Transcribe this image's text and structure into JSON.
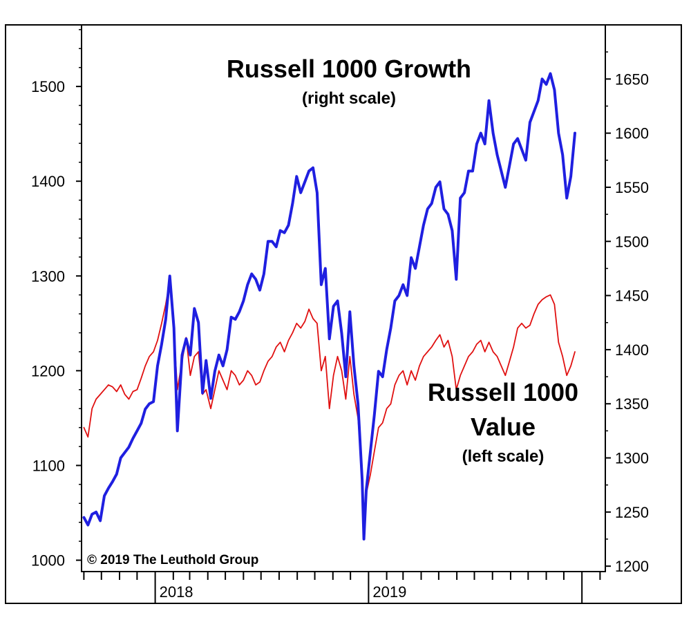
{
  "chart_data": {
    "type": "line",
    "title": "",
    "x_ticks": [
      "2018",
      "2019"
    ],
    "left_axis": {
      "ticks": [
        1000,
        1100,
        1200,
        1300,
        1400,
        1500
      ],
      "ylim": [
        988,
        1565
      ]
    },
    "right_axis": {
      "ticks": [
        1200,
        1250,
        1300,
        1350,
        1400,
        1450,
        1500,
        1550,
        1600,
        1650
      ],
      "ylim": [
        1195,
        1700
      ]
    },
    "grid": false,
    "annotations": {
      "growth_title": "Russell 1000 Growth",
      "growth_sub": "(right scale)",
      "value_title_1": "Russell 1000",
      "value_title_2": "Value",
      "value_sub": "(left scale)",
      "copyright": "© 2019 The Leuthold  Group"
    },
    "series": [
      {
        "name": "Russell 1000 Growth",
        "axis": "right",
        "color": "#1f1fe0",
        "points": [
          [
            "2017-09-01",
            1245
          ],
          [
            "2017-09-08",
            1238
          ],
          [
            "2017-09-15",
            1248
          ],
          [
            "2017-09-22",
            1250
          ],
          [
            "2017-09-29",
            1242
          ],
          [
            "2017-10-06",
            1265
          ],
          [
            "2017-10-13",
            1272
          ],
          [
            "2017-10-20",
            1278
          ],
          [
            "2017-10-27",
            1285
          ],
          [
            "2017-11-03",
            1300
          ],
          [
            "2017-11-10",
            1305
          ],
          [
            "2017-11-17",
            1310
          ],
          [
            "2017-11-24",
            1318
          ],
          [
            "2017-12-01",
            1325
          ],
          [
            "2017-12-08",
            1332
          ],
          [
            "2017-12-15",
            1345
          ],
          [
            "2017-12-22",
            1350
          ],
          [
            "2017-12-29",
            1352
          ],
          [
            "2018-01-05",
            1385
          ],
          [
            "2018-01-12",
            1405
          ],
          [
            "2018-01-19",
            1428
          ],
          [
            "2018-01-26",
            1468
          ],
          [
            "2018-02-02",
            1420
          ],
          [
            "2018-02-08",
            1325
          ],
          [
            "2018-02-16",
            1395
          ],
          [
            "2018-02-23",
            1410
          ],
          [
            "2018-03-02",
            1395
          ],
          [
            "2018-03-09",
            1438
          ],
          [
            "2018-03-16",
            1425
          ],
          [
            "2018-03-23",
            1360
          ],
          [
            "2018-03-29",
            1390
          ],
          [
            "2018-04-06",
            1355
          ],
          [
            "2018-04-13",
            1380
          ],
          [
            "2018-04-20",
            1395
          ],
          [
            "2018-04-27",
            1385
          ],
          [
            "2018-05-04",
            1400
          ],
          [
            "2018-05-11",
            1430
          ],
          [
            "2018-05-18",
            1428
          ],
          [
            "2018-05-25",
            1435
          ],
          [
            "2018-06-01",
            1445
          ],
          [
            "2018-06-08",
            1460
          ],
          [
            "2018-06-15",
            1470
          ],
          [
            "2018-06-22",
            1465
          ],
          [
            "2018-06-29",
            1455
          ],
          [
            "2018-07-06",
            1470
          ],
          [
            "2018-07-13",
            1500
          ],
          [
            "2018-07-20",
            1500
          ],
          [
            "2018-07-27",
            1495
          ],
          [
            "2018-08-03",
            1510
          ],
          [
            "2018-08-10",
            1508
          ],
          [
            "2018-08-17",
            1515
          ],
          [
            "2018-08-24",
            1535
          ],
          [
            "2018-08-31",
            1560
          ],
          [
            "2018-09-07",
            1545
          ],
          [
            "2018-09-14",
            1555
          ],
          [
            "2018-09-21",
            1565
          ],
          [
            "2018-09-28",
            1568
          ],
          [
            "2018-10-05",
            1545
          ],
          [
            "2018-10-12",
            1460
          ],
          [
            "2018-10-19",
            1475
          ],
          [
            "2018-10-26",
            1410
          ],
          [
            "2018-11-02",
            1440
          ],
          [
            "2018-11-09",
            1445
          ],
          [
            "2018-11-16",
            1415
          ],
          [
            "2018-11-23",
            1375
          ],
          [
            "2018-11-30",
            1435
          ],
          [
            "2018-12-07",
            1385
          ],
          [
            "2018-12-14",
            1350
          ],
          [
            "2018-12-21",
            1280
          ],
          [
            "2018-12-24",
            1225
          ],
          [
            "2018-12-28",
            1270
          ],
          [
            "2019-01-04",
            1305
          ],
          [
            "2019-01-11",
            1340
          ],
          [
            "2019-01-18",
            1380
          ],
          [
            "2019-01-25",
            1375
          ],
          [
            "2019-02-01",
            1400
          ],
          [
            "2019-02-08",
            1420
          ],
          [
            "2019-02-15",
            1445
          ],
          [
            "2019-02-22",
            1450
          ],
          [
            "2019-03-01",
            1460
          ],
          [
            "2019-03-08",
            1450
          ],
          [
            "2019-03-15",
            1485
          ],
          [
            "2019-03-22",
            1475
          ],
          [
            "2019-03-29",
            1495
          ],
          [
            "2019-04-05",
            1515
          ],
          [
            "2019-04-12",
            1530
          ],
          [
            "2019-04-19",
            1535
          ],
          [
            "2019-04-26",
            1550
          ],
          [
            "2019-05-03",
            1555
          ],
          [
            "2019-05-10",
            1530
          ],
          [
            "2019-05-17",
            1525
          ],
          [
            "2019-05-24",
            1510
          ],
          [
            "2019-05-31",
            1465
          ],
          [
            "2019-06-07",
            1540
          ],
          [
            "2019-06-14",
            1545
          ],
          [
            "2019-06-21",
            1565
          ],
          [
            "2019-06-28",
            1565
          ],
          [
            "2019-07-05",
            1590
          ],
          [
            "2019-07-12",
            1600
          ],
          [
            "2019-07-19",
            1590
          ],
          [
            "2019-07-26",
            1630
          ],
          [
            "2019-08-02",
            1600
          ],
          [
            "2019-08-09",
            1580
          ],
          [
            "2019-08-16",
            1565
          ],
          [
            "2019-08-23",
            1550
          ],
          [
            "2019-08-30",
            1570
          ],
          [
            "2019-09-06",
            1590
          ],
          [
            "2019-09-13",
            1595
          ],
          [
            "2019-09-20",
            1585
          ],
          [
            "2019-09-27",
            1575
          ],
          [
            "2019-10-04",
            1610
          ],
          [
            "2019-10-11",
            1620
          ],
          [
            "2019-10-18",
            1630
          ],
          [
            "2019-10-25",
            1650
          ],
          [
            "2019-11-01",
            1645
          ],
          [
            "2019-11-08",
            1655
          ],
          [
            "2019-11-15",
            1640
          ],
          [
            "2019-11-22",
            1600
          ],
          [
            "2019-11-29",
            1580
          ],
          [
            "2019-12-06",
            1540
          ],
          [
            "2019-12-13",
            1560
          ],
          [
            "2019-12-20",
            1600
          ]
        ]
      },
      {
        "name": "Russell 1000 Value",
        "axis": "left",
        "color": "#e01010",
        "points": [
          [
            "2017-09-01",
            1140
          ],
          [
            "2017-09-08",
            1130
          ],
          [
            "2017-09-15",
            1160
          ],
          [
            "2017-09-22",
            1170
          ],
          [
            "2017-09-29",
            1175
          ],
          [
            "2017-10-06",
            1180
          ],
          [
            "2017-10-13",
            1185
          ],
          [
            "2017-10-20",
            1183
          ],
          [
            "2017-10-27",
            1178
          ],
          [
            "2017-11-03",
            1185
          ],
          [
            "2017-11-10",
            1175
          ],
          [
            "2017-11-17",
            1170
          ],
          [
            "2017-11-24",
            1178
          ],
          [
            "2017-12-01",
            1180
          ],
          [
            "2017-12-08",
            1192
          ],
          [
            "2017-12-15",
            1205
          ],
          [
            "2017-12-22",
            1215
          ],
          [
            "2017-12-29",
            1220
          ],
          [
            "2018-01-05",
            1232
          ],
          [
            "2018-01-12",
            1250
          ],
          [
            "2018-01-19",
            1270
          ],
          [
            "2018-01-26",
            1295
          ],
          [
            "2018-02-02",
            1240
          ],
          [
            "2018-02-08",
            1180
          ],
          [
            "2018-02-16",
            1210
          ],
          [
            "2018-02-23",
            1235
          ],
          [
            "2018-03-02",
            1195
          ],
          [
            "2018-03-09",
            1215
          ],
          [
            "2018-03-16",
            1220
          ],
          [
            "2018-03-23",
            1175
          ],
          [
            "2018-03-29",
            1180
          ],
          [
            "2018-04-06",
            1160
          ],
          [
            "2018-04-13",
            1180
          ],
          [
            "2018-04-20",
            1200
          ],
          [
            "2018-04-27",
            1190
          ],
          [
            "2018-05-04",
            1180
          ],
          [
            "2018-05-11",
            1200
          ],
          [
            "2018-05-18",
            1195
          ],
          [
            "2018-05-25",
            1185
          ],
          [
            "2018-06-01",
            1190
          ],
          [
            "2018-06-08",
            1200
          ],
          [
            "2018-06-15",
            1195
          ],
          [
            "2018-06-22",
            1185
          ],
          [
            "2018-06-29",
            1188
          ],
          [
            "2018-07-06",
            1200
          ],
          [
            "2018-07-13",
            1210
          ],
          [
            "2018-07-20",
            1215
          ],
          [
            "2018-07-27",
            1225
          ],
          [
            "2018-08-03",
            1230
          ],
          [
            "2018-08-10",
            1220
          ],
          [
            "2018-08-17",
            1232
          ],
          [
            "2018-08-24",
            1240
          ],
          [
            "2018-08-31",
            1250
          ],
          [
            "2018-09-07",
            1245
          ],
          [
            "2018-09-14",
            1252
          ],
          [
            "2018-09-21",
            1265
          ],
          [
            "2018-09-28",
            1255
          ],
          [
            "2018-10-05",
            1250
          ],
          [
            "2018-10-12",
            1200
          ],
          [
            "2018-10-19",
            1215
          ],
          [
            "2018-10-26",
            1160
          ],
          [
            "2018-11-02",
            1195
          ],
          [
            "2018-11-09",
            1215
          ],
          [
            "2018-11-16",
            1200
          ],
          [
            "2018-11-23",
            1170
          ],
          [
            "2018-11-30",
            1215
          ],
          [
            "2018-12-07",
            1175
          ],
          [
            "2018-12-14",
            1150
          ],
          [
            "2018-12-21",
            1095
          ],
          [
            "2018-12-24",
            1040
          ],
          [
            "2018-12-28",
            1070
          ],
          [
            "2019-01-04",
            1090
          ],
          [
            "2019-01-11",
            1115
          ],
          [
            "2019-01-18",
            1140
          ],
          [
            "2019-01-25",
            1145
          ],
          [
            "2019-02-01",
            1160
          ],
          [
            "2019-02-08",
            1165
          ],
          [
            "2019-02-15",
            1185
          ],
          [
            "2019-02-22",
            1195
          ],
          [
            "2019-03-01",
            1200
          ],
          [
            "2019-03-08",
            1185
          ],
          [
            "2019-03-15",
            1200
          ],
          [
            "2019-03-22",
            1190
          ],
          [
            "2019-03-29",
            1205
          ],
          [
            "2019-04-05",
            1215
          ],
          [
            "2019-04-12",
            1220
          ],
          [
            "2019-04-19",
            1225
          ],
          [
            "2019-04-26",
            1232
          ],
          [
            "2019-05-03",
            1238
          ],
          [
            "2019-05-10",
            1225
          ],
          [
            "2019-05-17",
            1232
          ],
          [
            "2019-05-24",
            1215
          ],
          [
            "2019-05-31",
            1180
          ],
          [
            "2019-06-07",
            1195
          ],
          [
            "2019-06-14",
            1205
          ],
          [
            "2019-06-21",
            1215
          ],
          [
            "2019-06-28",
            1220
          ],
          [
            "2019-07-05",
            1228
          ],
          [
            "2019-07-12",
            1232
          ],
          [
            "2019-07-19",
            1220
          ],
          [
            "2019-07-26",
            1230
          ],
          [
            "2019-08-02",
            1220
          ],
          [
            "2019-08-09",
            1215
          ],
          [
            "2019-08-16",
            1205
          ],
          [
            "2019-08-23",
            1195
          ],
          [
            "2019-08-30",
            1210
          ],
          [
            "2019-09-06",
            1225
          ],
          [
            "2019-09-13",
            1245
          ],
          [
            "2019-09-20",
            1250
          ],
          [
            "2019-09-27",
            1245
          ],
          [
            "2019-10-04",
            1248
          ],
          [
            "2019-10-11",
            1260
          ],
          [
            "2019-10-18",
            1270
          ],
          [
            "2019-10-25",
            1275
          ],
          [
            "2019-11-01",
            1278
          ],
          [
            "2019-11-08",
            1280
          ],
          [
            "2019-11-15",
            1270
          ],
          [
            "2019-11-22",
            1230
          ],
          [
            "2019-11-29",
            1215
          ],
          [
            "2019-12-06",
            1195
          ],
          [
            "2019-12-13",
            1205
          ],
          [
            "2019-12-20",
            1220
          ]
        ]
      }
    ]
  }
}
